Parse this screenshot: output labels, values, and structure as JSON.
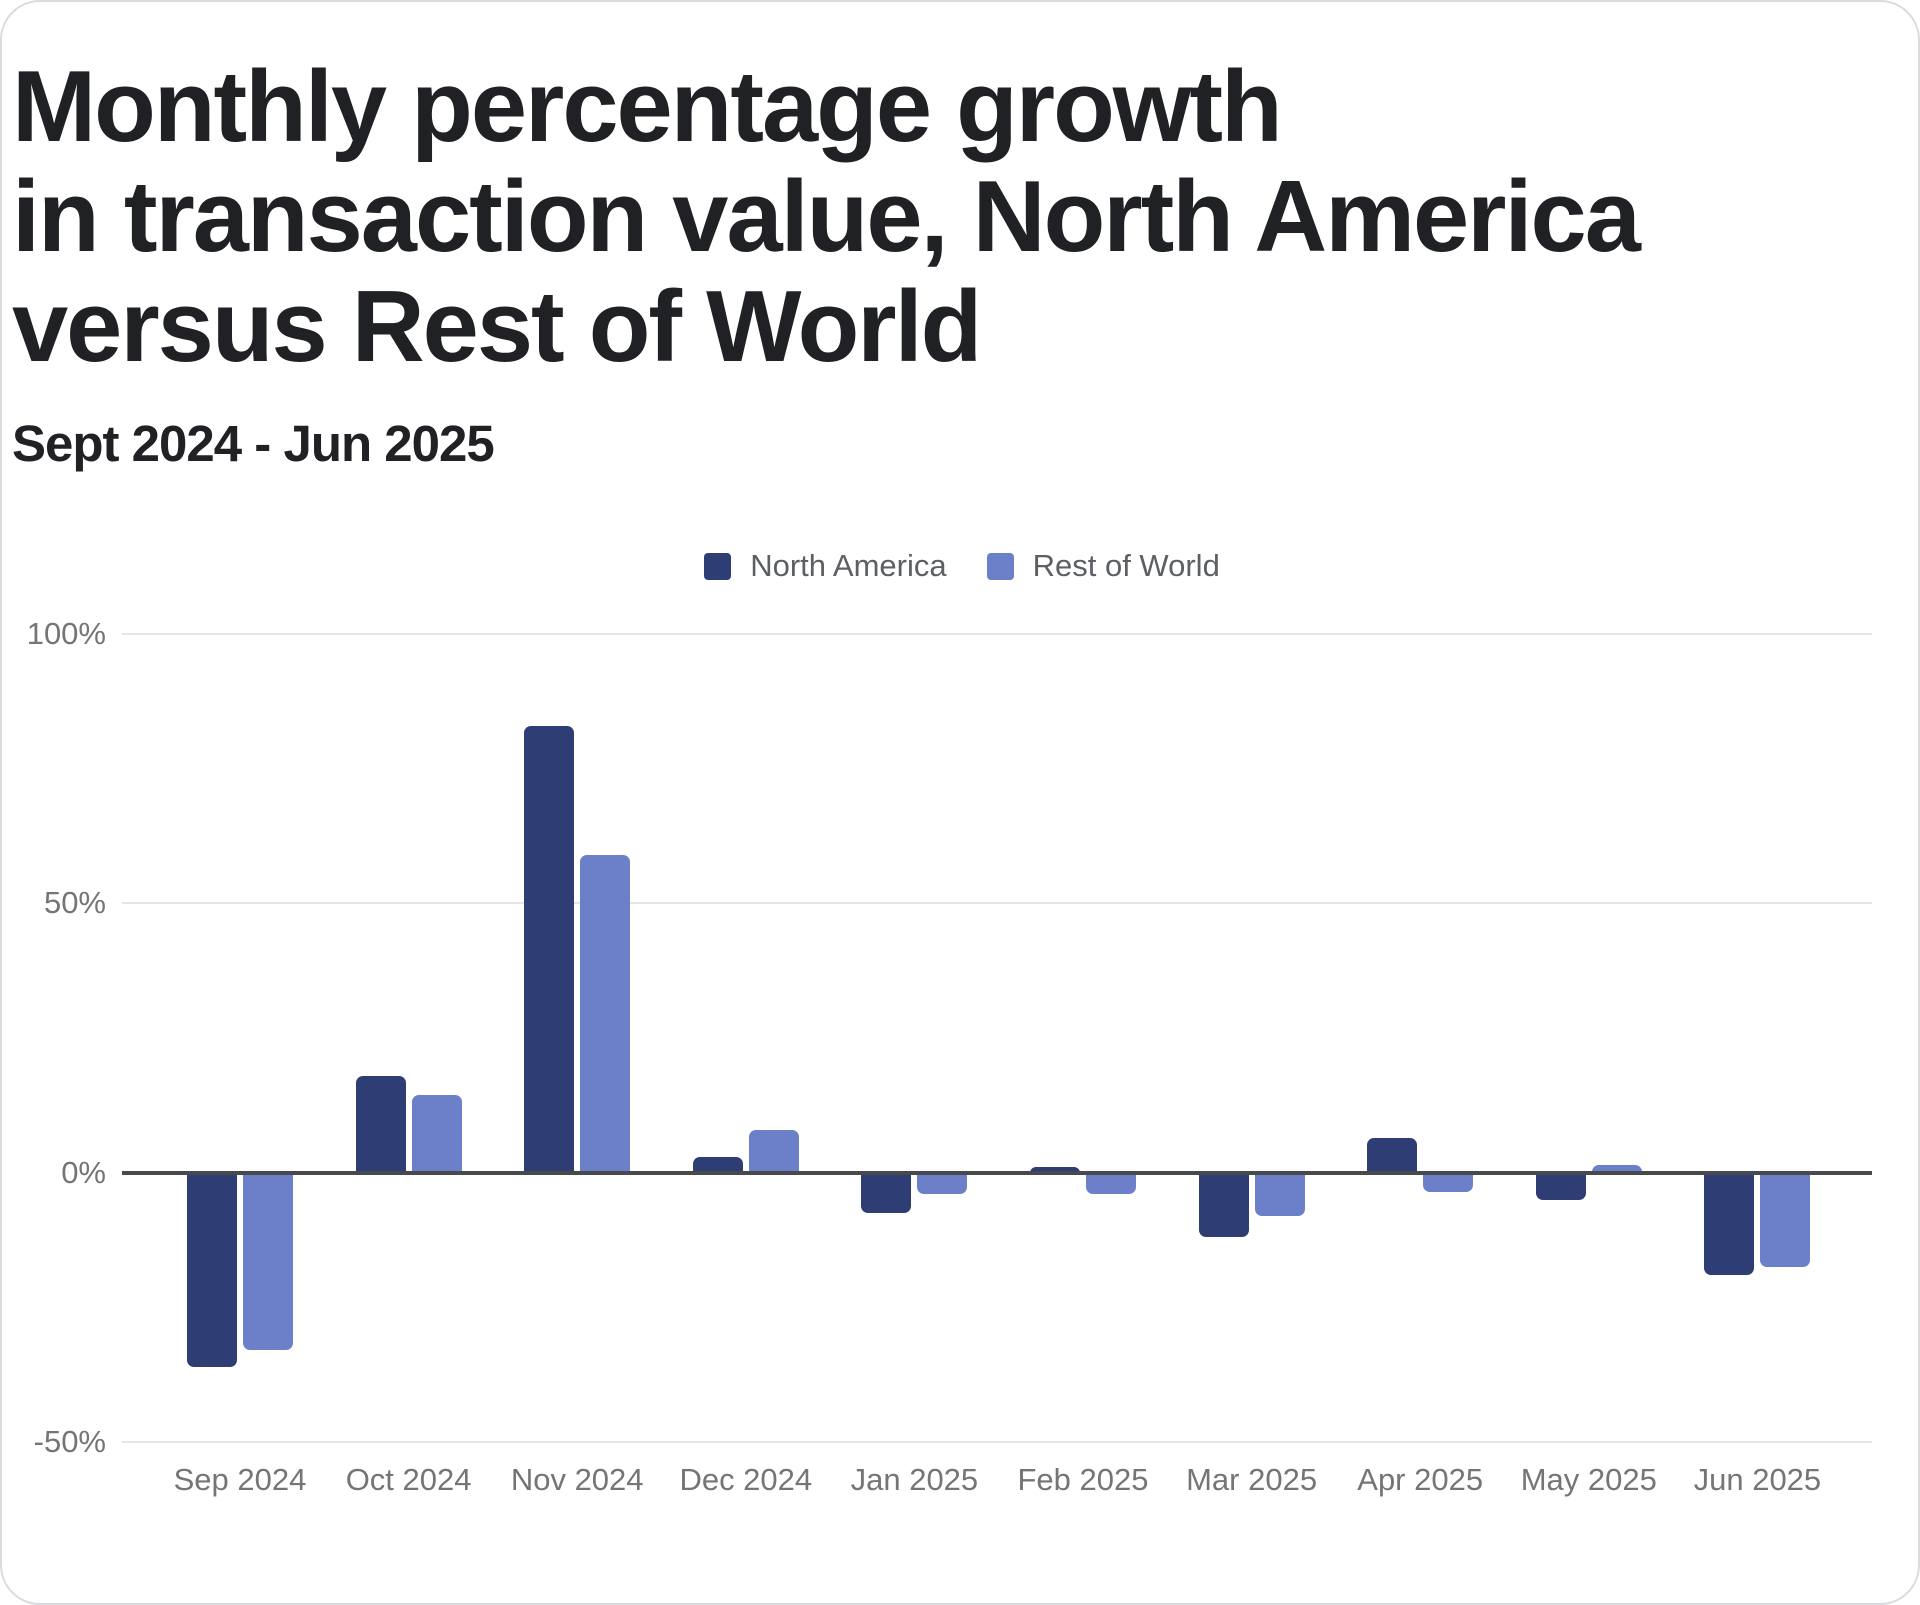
{
  "card": {
    "title": "Monthly percentage growth\nin transaction value, North America\nversus Rest of World",
    "subtitle": "Sept 2024 - Jun 2025"
  },
  "chart_data": {
    "type": "bar",
    "title": "Monthly percentage growth in transaction value, North America versus Rest of World",
    "subtitle": "Sept 2024 - Jun 2025",
    "categories": [
      "Sep 2024",
      "Oct 2024",
      "Nov 2024",
      "Dec 2024",
      "Jan 2025",
      "Feb 2025",
      "Mar 2025",
      "Apr 2025",
      "May 2025",
      "Jun 2025"
    ],
    "series": [
      {
        "name": "North America",
        "color": "#2e3d74",
        "values": [
          -36,
          18,
          83,
          3,
          -7.5,
          1,
          -12,
          6.5,
          -5,
          -19
        ]
      },
      {
        "name": "Rest of World",
        "color": "#6b80c8",
        "values": [
          -33,
          14.5,
          59,
          8,
          -4,
          -4,
          -8,
          -3.5,
          1.5,
          -17.5
        ]
      }
    ],
    "xlabel": "",
    "ylabel": "",
    "ylim": [
      -50,
      100
    ],
    "y_tick_values": [
      100,
      50,
      0,
      -50
    ],
    "y_tick_labels": [
      "100%",
      "50%",
      "0%",
      "-50%"
    ],
    "grid": "horizontal",
    "legend_position": "top-center",
    "colors": {
      "title_text": "#202124",
      "axis_text": "#757575",
      "legend_text": "#5c5f63",
      "gridline": "#e4e5e7",
      "zero_line": "#47494d"
    }
  }
}
